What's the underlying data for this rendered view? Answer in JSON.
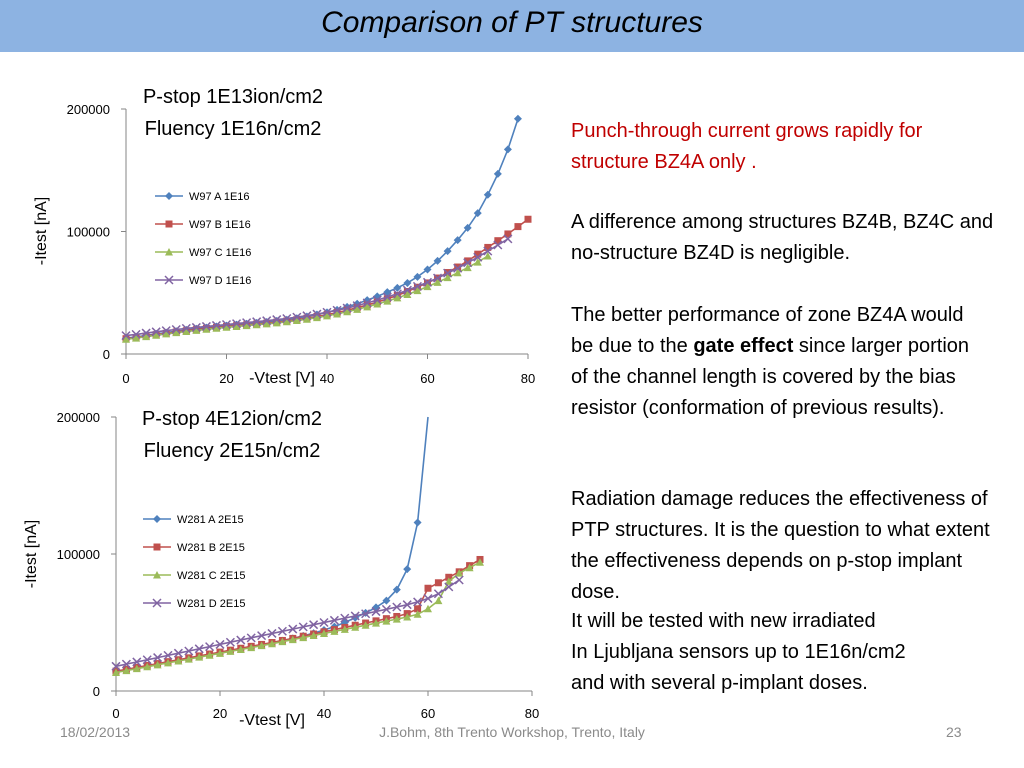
{
  "slide": {
    "title": "Comparison of PT structures",
    "footer": {
      "date": "18/02/2013",
      "event": "J.Bohm, 8th Trento Workshop, Trento, Italy",
      "page": "23"
    }
  },
  "text": {
    "p1": "Punch-through current grows rapidly for structure BZ4A only .",
    "p2": "A difference among structures BZ4B, BZ4C and no-structure BZ4D is negligible.",
    "p3_a": "The better performance of zone BZ4A would be due to the ",
    "p3_bold": "gate effect",
    "p3_b": " since larger portion of the channel length is covered by the bias resistor (conformation of previous results).",
    "p4": "Radiation damage reduces the effectiveness of PTP structures. It is the question to what extent the effectiveness depends on p-stop implant dose.",
    "p5": "It will be tested with new irradiated",
    "p6": "In Ljubljana sensors up to 1E16n/cm2",
    "p7": "and with several p-implant doses."
  },
  "colors": {
    "title_bar": "#8db3e2",
    "series_a": "#4f81bd",
    "series_b": "#c0504d",
    "series_c": "#9bbb59",
    "series_d": "#8064a2",
    "red_text": "#c00000"
  },
  "chart_data": [
    {
      "type": "line",
      "title": [
        "P-stop 1E13ion/cm2",
        "Fluency 1E16n/cm2"
      ],
      "xlabel": "-Vtest  [V]",
      "ylabel": "-Itest [nA]",
      "xlim": [
        0,
        80
      ],
      "ylim": [
        0,
        200000
      ],
      "xticks": [
        "0",
        "20",
        "40",
        "60",
        "80"
      ],
      "yticks": [
        "0",
        "100000",
        "200000"
      ],
      "legend_position": "left",
      "series": [
        {
          "name": "W97 A 1E16",
          "color": "#4f81bd",
          "marker": "diamond",
          "x": [
            0,
            2,
            4,
            6,
            8,
            10,
            12,
            14,
            16,
            18,
            20,
            22,
            24,
            26,
            28,
            30,
            32,
            34,
            36,
            38,
            40,
            42,
            44,
            46,
            48,
            50,
            52,
            54,
            56,
            58,
            60,
            62,
            64,
            66,
            68,
            70,
            72,
            74,
            76,
            78
          ],
          "y": [
            13000,
            14000,
            15200,
            16400,
            17500,
            18600,
            19700,
            20600,
            21500,
            22400,
            23200,
            24000,
            24700,
            25400,
            26100,
            27000,
            28000,
            29200,
            30600,
            32200,
            34000,
            36000,
            38500,
            41000,
            44000,
            47000,
            50500,
            54000,
            58000,
            63000,
            69000,
            76000,
            84000,
            93000,
            103000,
            115000,
            130000,
            147000,
            167000,
            192000
          ]
        },
        {
          "name": "W97 B 1E16",
          "color": "#c0504d",
          "marker": "square",
          "x": [
            0,
            2,
            4,
            6,
            8,
            10,
            12,
            14,
            16,
            18,
            20,
            22,
            24,
            26,
            28,
            30,
            32,
            34,
            36,
            38,
            40,
            42,
            44,
            46,
            48,
            50,
            52,
            54,
            56,
            58,
            60,
            62,
            64,
            66,
            68,
            70,
            72,
            74,
            76,
            78,
            80
          ],
          "y": [
            12500,
            13500,
            14700,
            15800,
            16900,
            18000,
            19000,
            19900,
            20800,
            21600,
            22400,
            23100,
            23800,
            24500,
            25200,
            26000,
            26900,
            28000,
            29200,
            30600,
            32100,
            33800,
            35700,
            37800,
            40000,
            42400,
            45000,
            47800,
            51000,
            54500,
            58000,
            62000,
            66500,
            71000,
            76000,
            81500,
            87000,
            92500,
            98000,
            104000,
            110000
          ]
        },
        {
          "name": "W97 C 1E16",
          "color": "#9bbb59",
          "marker": "triangle",
          "x": [
            0,
            2,
            4,
            6,
            8,
            10,
            12,
            14,
            16,
            18,
            20,
            22,
            24,
            26,
            28,
            30,
            32,
            34,
            36,
            38,
            40,
            42,
            44,
            46,
            48,
            50,
            52,
            54,
            56,
            58,
            60,
            62,
            64,
            66,
            68,
            70,
            72
          ],
          "y": [
            12000,
            13000,
            14200,
            15300,
            16400,
            17400,
            18400,
            19300,
            20200,
            21000,
            21800,
            22500,
            23200,
            23900,
            24600,
            25400,
            26300,
            27300,
            28400,
            29700,
            31100,
            32700,
            34500,
            36400,
            38500,
            40800,
            43200,
            45800,
            48600,
            51700,
            55000,
            58500,
            62300,
            66300,
            70500,
            75000,
            80000
          ]
        },
        {
          "name": "W97 D 1E16",
          "color": "#8064a2",
          "marker": "x",
          "x": [
            0,
            2,
            4,
            6,
            8,
            10,
            12,
            14,
            16,
            18,
            20,
            22,
            24,
            26,
            28,
            30,
            32,
            34,
            36,
            38,
            40,
            42,
            44,
            46,
            48,
            50,
            52,
            54,
            56,
            58,
            60,
            62,
            64,
            66,
            68,
            70,
            72,
            74,
            76
          ],
          "y": [
            15000,
            16000,
            17100,
            18100,
            19100,
            20000,
            20900,
            21700,
            22500,
            23300,
            24100,
            24800,
            25600,
            26400,
            27200,
            28100,
            29000,
            30100,
            31300,
            32600,
            34100,
            35700,
            37500,
            39500,
            41700,
            44000,
            46500,
            49200,
            52100,
            55200,
            58500,
            62000,
            66000,
            70000,
            74500,
            79000,
            84000,
            89000,
            94000
          ]
        }
      ]
    },
    {
      "type": "line",
      "title": [
        "P-stop 4E12ion/cm2",
        "Fluency 2E15n/cm2"
      ],
      "xlabel": "-Vtest [V]",
      "ylabel": "-Itest [nA]",
      "xlim": [
        0,
        80
      ],
      "ylim": [
        0,
        200000
      ],
      "xticks": [
        "0",
        "20",
        "40",
        "60",
        "80"
      ],
      "yticks": [
        "0",
        "100000",
        "200000"
      ],
      "legend_position": "left",
      "series": [
        {
          "name": "W281 A 2E15",
          "color": "#4f81bd",
          "marker": "diamond",
          "x": [
            0,
            2,
            4,
            6,
            8,
            10,
            12,
            14,
            16,
            18,
            20,
            22,
            24,
            26,
            28,
            30,
            32,
            34,
            36,
            38,
            40,
            42,
            44,
            46,
            48,
            50,
            52,
            54,
            56,
            58,
            60
          ],
          "y": [
            14000,
            15400,
            16800,
            18200,
            19600,
            21000,
            22400,
            23800,
            25200,
            26600,
            28000,
            29400,
            30800,
            32200,
            33600,
            35100,
            36700,
            38400,
            40200,
            42200,
            44500,
            47000,
            50000,
            53500,
            57000,
            61000,
            66000,
            74000,
            89000,
            123000,
            200000
          ],
          "marker_x": [
            0,
            2,
            4,
            6,
            8,
            10,
            12,
            14,
            16,
            18,
            20,
            22,
            24,
            26,
            28,
            30,
            32,
            34,
            36,
            38,
            40,
            42,
            44,
            46,
            48,
            50,
            52,
            54,
            56,
            58
          ]
        },
        {
          "name": "W281 B 2E15",
          "color": "#c0504d",
          "marker": "square",
          "x": [
            0,
            2,
            4,
            6,
            8,
            10,
            12,
            14,
            16,
            18,
            20,
            22,
            24,
            26,
            28,
            30,
            32,
            34,
            36,
            38,
            40,
            42,
            44,
            46,
            48,
            50,
            52,
            54,
            56,
            58,
            60,
            62,
            64,
            66,
            68,
            70
          ],
          "y": [
            14500,
            15800,
            17200,
            18600,
            20000,
            21400,
            22800,
            24200,
            25600,
            27000,
            28400,
            29800,
            31200,
            32600,
            34000,
            35400,
            36900,
            38400,
            40000,
            41600,
            43200,
            44800,
            46400,
            48000,
            49600,
            51200,
            52800,
            54400,
            56500,
            60000,
            75000,
            79000,
            83000,
            87000,
            91500,
            96000
          ]
        },
        {
          "name": "W281 C 2E15",
          "color": "#9bbb59",
          "marker": "triangle",
          "x": [
            0,
            2,
            4,
            6,
            8,
            10,
            12,
            14,
            16,
            18,
            20,
            22,
            24,
            26,
            28,
            30,
            32,
            34,
            36,
            38,
            40,
            42,
            44,
            46,
            48,
            50,
            52,
            54,
            56,
            58,
            60,
            62,
            64,
            66,
            68,
            70
          ],
          "y": [
            13500,
            14900,
            16300,
            17700,
            19100,
            20500,
            21900,
            23300,
            24700,
            26100,
            27500,
            28900,
            30300,
            31700,
            33100,
            34500,
            36000,
            37500,
            39000,
            40500,
            42000,
            43500,
            45000,
            46500,
            48000,
            49500,
            51000,
            52500,
            54000,
            56000,
            60000,
            66000,
            80000,
            86000,
            90000,
            94000
          ]
        },
        {
          "name": "W281 D 2E15",
          "color": "#8064a2",
          "marker": "x",
          "x": [
            0,
            2,
            4,
            6,
            8,
            10,
            12,
            14,
            16,
            18,
            20,
            22,
            24,
            26,
            28,
            30,
            32,
            34,
            36,
            38,
            40,
            42,
            44,
            46,
            48,
            50,
            52,
            54,
            56,
            58,
            60,
            62,
            64,
            66
          ],
          "y": [
            18000,
            19600,
            21200,
            22800,
            24400,
            26000,
            27600,
            29200,
            30800,
            32400,
            34000,
            35600,
            37200,
            38800,
            40400,
            42000,
            43600,
            45200,
            46800,
            48400,
            50000,
            51600,
            53200,
            54800,
            56400,
            58000,
            59600,
            61300,
            63000,
            65000,
            67500,
            71000,
            76000,
            81000
          ]
        }
      ]
    }
  ]
}
